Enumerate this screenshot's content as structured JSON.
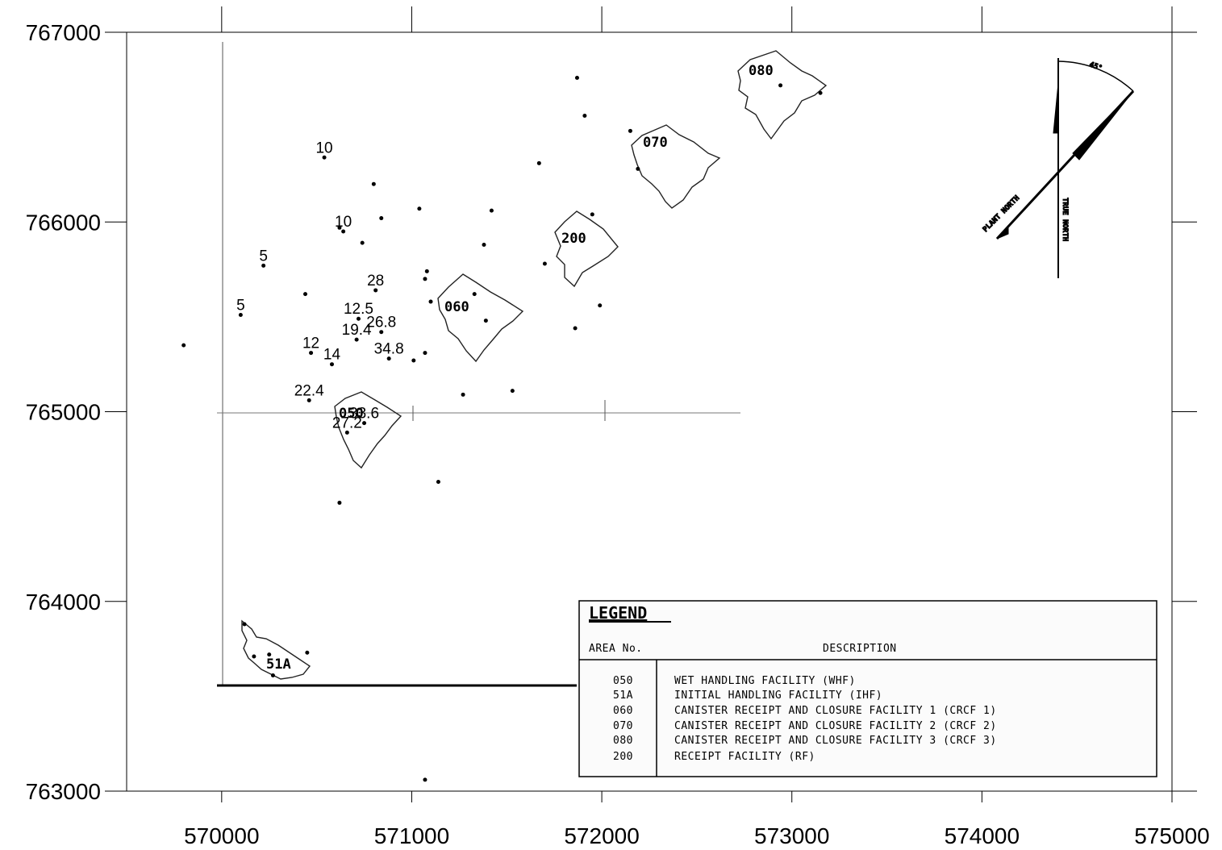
{
  "map": {
    "xlim": [
      569500,
      575000
    ],
    "ylim": [
      763000,
      767000
    ],
    "x_ticks": [
      "570000",
      "571000",
      "572000",
      "573000",
      "574000",
      "575000"
    ],
    "y_ticks": [
      "763000",
      "764000",
      "765000",
      "766000",
      "767000"
    ]
  },
  "points": [
    {
      "x": 569800,
      "y": 765350,
      "label": ""
    },
    {
      "x": 570100,
      "y": 765510,
      "label": "5"
    },
    {
      "x": 570220,
      "y": 765770,
      "label": "5"
    },
    {
      "x": 570540,
      "y": 766340,
      "label": "10"
    },
    {
      "x": 570640,
      "y": 765950,
      "label": "10"
    },
    {
      "x": 570620,
      "y": 765970,
      "label": ""
    },
    {
      "x": 570740,
      "y": 765890,
      "label": ""
    },
    {
      "x": 570800,
      "y": 766200,
      "label": ""
    },
    {
      "x": 570840,
      "y": 766020,
      "label": ""
    },
    {
      "x": 570440,
      "y": 765620,
      "label": ""
    },
    {
      "x": 570810,
      "y": 765640,
      "label": "28"
    },
    {
      "x": 570720,
      "y": 765490,
      "label": "12.5"
    },
    {
      "x": 570840,
      "y": 765420,
      "label": "26.8"
    },
    {
      "x": 570710,
      "y": 765380,
      "label": "19.4"
    },
    {
      "x": 570470,
      "y": 765310,
      "label": "12"
    },
    {
      "x": 570580,
      "y": 765250,
      "label": "14"
    },
    {
      "x": 570880,
      "y": 765280,
      "label": "34.8"
    },
    {
      "x": 570460,
      "y": 765060,
      "label": "22.4"
    },
    {
      "x": 570750,
      "y": 764940,
      "label": "33.6"
    },
    {
      "x": 570660,
      "y": 764890,
      "label": "27.2"
    },
    {
      "x": 571040,
      "y": 766070,
      "label": ""
    },
    {
      "x": 571080,
      "y": 765740,
      "label": ""
    },
    {
      "x": 571070,
      "y": 765700,
      "label": ""
    },
    {
      "x": 571100,
      "y": 765580,
      "label": ""
    },
    {
      "x": 571010,
      "y": 765270,
      "label": ""
    },
    {
      "x": 571070,
      "y": 765310,
      "label": ""
    },
    {
      "x": 571270,
      "y": 765090,
      "label": ""
    },
    {
      "x": 571530,
      "y": 765110,
      "label": ""
    },
    {
      "x": 571420,
      "y": 766060,
      "label": ""
    },
    {
      "x": 571380,
      "y": 765880,
      "label": ""
    },
    {
      "x": 571330,
      "y": 765620,
      "label": ""
    },
    {
      "x": 571390,
      "y": 765480,
      "label": ""
    },
    {
      "x": 571670,
      "y": 766310,
      "label": ""
    },
    {
      "x": 571700,
      "y": 765780,
      "label": ""
    },
    {
      "x": 571870,
      "y": 766760,
      "label": ""
    },
    {
      "x": 571910,
      "y": 766560,
      "label": ""
    },
    {
      "x": 571950,
      "y": 766040,
      "label": ""
    },
    {
      "x": 571990,
      "y": 765560,
      "label": ""
    },
    {
      "x": 571860,
      "y": 765440,
      "label": ""
    },
    {
      "x": 572150,
      "y": 766480,
      "label": ""
    },
    {
      "x": 572190,
      "y": 766280,
      "label": ""
    },
    {
      "x": 572940,
      "y": 766720,
      "label": ""
    },
    {
      "x": 573150,
      "y": 766680,
      "label": ""
    },
    {
      "x": 571140,
      "y": 764630,
      "label": ""
    },
    {
      "x": 570620,
      "y": 764520,
      "label": ""
    },
    {
      "x": 570120,
      "y": 763880,
      "label": ""
    },
    {
      "x": 570170,
      "y": 763710,
      "label": ""
    },
    {
      "x": 570250,
      "y": 763720,
      "label": ""
    },
    {
      "x": 570270,
      "y": 763610,
      "label": ""
    },
    {
      "x": 570450,
      "y": 763730,
      "label": ""
    },
    {
      "x": 571070,
      "y": 763060,
      "label": ""
    }
  ],
  "buildings": [
    {
      "id": "050",
      "label": "050"
    },
    {
      "id": "51A",
      "label": "51A"
    },
    {
      "id": "060",
      "label": "060"
    },
    {
      "id": "070",
      "label": "070"
    },
    {
      "id": "080",
      "label": "080"
    },
    {
      "id": "200",
      "label": "200"
    }
  ],
  "north_arrow": {
    "angle_label": "45°",
    "plant_north": "PLANT NORTH",
    "true_north": "TRUE NORTH"
  },
  "legend": {
    "title": "LEGEND",
    "col_area": "AREA No.",
    "col_desc": "DESCRIPTION",
    "rows": [
      {
        "area": "050",
        "desc": "WET HANDLING FACILITY (WHF)"
      },
      {
        "area": "51A",
        "desc": "INITIAL HANDLING FACILITY (IHF)"
      },
      {
        "area": "060",
        "desc": "CANISTER RECEIPT AND CLOSURE FACILITY 1 (CRCF 1)"
      },
      {
        "area": "070",
        "desc": "CANISTER RECEIPT AND CLOSURE FACILITY 2 (CRCF 2)"
      },
      {
        "area": "080",
        "desc": "CANISTER RECEIPT AND CLOSURE FACILITY 3 (CRCF 3)"
      },
      {
        "area": "200",
        "desc": "RECEIPT FACILITY (RF)"
      }
    ]
  }
}
